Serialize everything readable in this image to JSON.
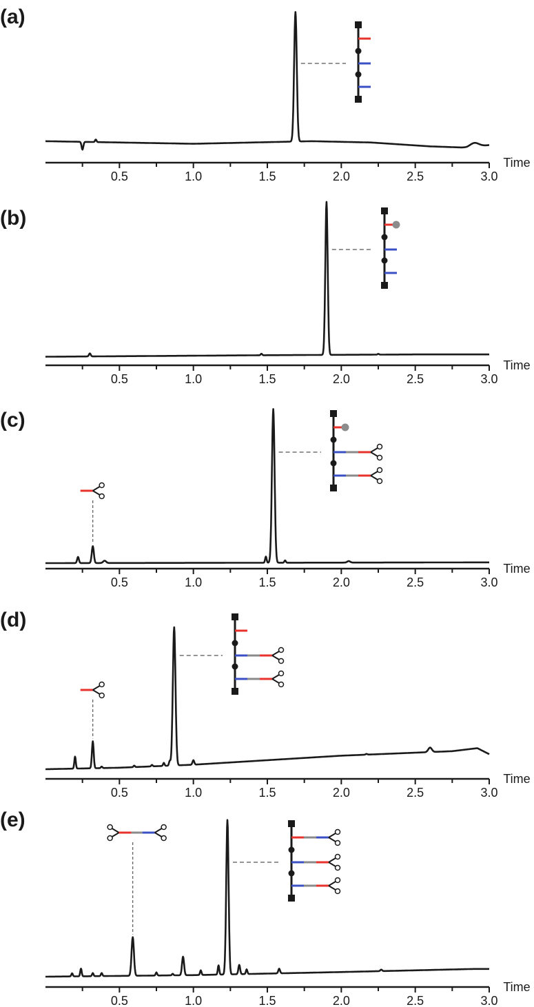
{
  "chart_data": [
    {
      "type": "line",
      "panel": "(a)",
      "xlabel": "Time",
      "xlim": [
        0.0,
        3.0
      ],
      "x_ticks": [
        "0.5",
        "1.0",
        "1.5",
        "2.0",
        "2.5",
        "3.0"
      ],
      "series": [
        {
          "peaks": [
            {
              "x": 0.25,
              "h": -0.06,
              "w": 0.006
            },
            {
              "x": 0.34,
              "h": 0.02,
              "w": 0.005
            },
            {
              "x": 1.69,
              "h": 1.0,
              "w": 0.009
            },
            {
              "x": 2.9,
              "h": 0.03,
              "w": 0.03
            }
          ],
          "baseline": [
            [
              0.0,
              0.07
            ],
            [
              1.0,
              0.05
            ],
            [
              1.8,
              0.07
            ],
            [
              2.2,
              0.06
            ],
            [
              2.6,
              0.03
            ],
            [
              2.85,
              0.02
            ],
            [
              3.0,
              0.04
            ]
          ]
        }
      ],
      "annotations": [
        {
          "x": 1.69,
          "structure": "polymer-red-blue-blue"
        }
      ]
    },
    {
      "type": "line",
      "panel": "(b)",
      "xlabel": "Time",
      "xlim": [
        0.0,
        3.0
      ],
      "x_ticks": [
        "0.5",
        "1.0",
        "1.5",
        "2.0",
        "2.5",
        "3.0"
      ],
      "series": [
        {
          "peaks": [
            {
              "x": 0.3,
              "h": 0.02,
              "w": 0.006
            },
            {
              "x": 1.46,
              "h": 0.01,
              "w": 0.005
            },
            {
              "x": 1.9,
              "h": 1.0,
              "w": 0.008
            },
            {
              "x": 2.25,
              "h": 0.005,
              "w": 0.005
            }
          ],
          "baseline": [
            [
              0.0,
              0.02
            ],
            [
              1.5,
              0.03
            ],
            [
              2.5,
              0.035
            ],
            [
              3.0,
              0.035
            ]
          ]
        }
      ],
      "annotations": [
        {
          "x": 1.9,
          "structure": "polymer-capped-blue-blue"
        }
      ]
    },
    {
      "type": "line",
      "panel": "(c)",
      "xlabel": "Time",
      "xlim": [
        0.0,
        3.0
      ],
      "x_ticks": [
        "0.5",
        "1.0",
        "1.5",
        "2.0",
        "2.5",
        "3.0"
      ],
      "series": [
        {
          "peaks": [
            {
              "x": 0.22,
              "h": 0.04,
              "w": 0.006
            },
            {
              "x": 0.32,
              "h": 0.11,
              "w": 0.007
            },
            {
              "x": 0.4,
              "h": 0.015,
              "w": 0.01
            },
            {
              "x": 1.49,
              "h": 0.04,
              "w": 0.005
            },
            {
              "x": 1.54,
              "h": 1.0,
              "w": 0.009
            },
            {
              "x": 1.62,
              "h": 0.015,
              "w": 0.005
            },
            {
              "x": 2.05,
              "h": 0.01,
              "w": 0.01
            }
          ],
          "baseline": [
            [
              0.0,
              0.0
            ],
            [
              3.0,
              0.005
            ]
          ]
        }
      ],
      "annotations": [
        {
          "x": 0.32,
          "structure": "linker-red"
        },
        {
          "x": 1.54,
          "structure": "polymer-capped-linked"
        }
      ]
    },
    {
      "type": "line",
      "panel": "(d)",
      "xlabel": "Time",
      "xlim": [
        0.0,
        3.0
      ],
      "x_ticks": [
        "0.5",
        "1.0",
        "1.5",
        "2.0",
        "2.5",
        "3.0"
      ],
      "series": [
        {
          "peaks": [
            {
              "x": 0.2,
              "h": 0.08,
              "w": 0.005
            },
            {
              "x": 0.32,
              "h": 0.18,
              "w": 0.006
            },
            {
              "x": 0.38,
              "h": 0.01,
              "w": 0.005
            },
            {
              "x": 0.6,
              "h": 0.01,
              "w": 0.005
            },
            {
              "x": 0.72,
              "h": 0.01,
              "w": 0.005
            },
            {
              "x": 0.8,
              "h": 0.02,
              "w": 0.005
            },
            {
              "x": 0.84,
              "h": 0.03,
              "w": 0.005
            },
            {
              "x": 0.87,
              "h": 0.92,
              "w": 0.009
            },
            {
              "x": 1.0,
              "h": 0.03,
              "w": 0.006
            },
            {
              "x": 2.17,
              "h": 0.005,
              "w": 0.006
            },
            {
              "x": 2.6,
              "h": 0.03,
              "w": 0.012
            }
          ],
          "baseline": [
            [
              0.0,
              0.0
            ],
            [
              0.5,
              0.01
            ],
            [
              1.0,
              0.03
            ],
            [
              1.5,
              0.06
            ],
            [
              2.0,
              0.09
            ],
            [
              2.5,
              0.11
            ],
            [
              2.75,
              0.12
            ],
            [
              2.92,
              0.14
            ],
            [
              3.0,
              0.1
            ]
          ]
        }
      ],
      "annotations": [
        {
          "x": 0.32,
          "structure": "linker-red"
        },
        {
          "x": 0.87,
          "structure": "polymer-red-linked"
        }
      ]
    },
    {
      "type": "line",
      "panel": "(e)",
      "xlabel": "Time",
      "xlim": [
        0.0,
        3.0
      ],
      "x_ticks": [
        "0.5",
        "1.0",
        "1.5",
        "2.0",
        "2.5",
        "3.0"
      ],
      "series": [
        {
          "peaks": [
            {
              "x": 0.18,
              "h": 0.02,
              "w": 0.005
            },
            {
              "x": 0.24,
              "h": 0.05,
              "w": 0.005
            },
            {
              "x": 0.32,
              "h": 0.02,
              "w": 0.005
            },
            {
              "x": 0.38,
              "h": 0.02,
              "w": 0.005
            },
            {
              "x": 0.59,
              "h": 0.25,
              "w": 0.008
            },
            {
              "x": 0.75,
              "h": 0.02,
              "w": 0.005
            },
            {
              "x": 0.86,
              "h": 0.01,
              "w": 0.005
            },
            {
              "x": 0.93,
              "h": 0.12,
              "w": 0.007
            },
            {
              "x": 1.05,
              "h": 0.03,
              "w": 0.005
            },
            {
              "x": 1.17,
              "h": 0.06,
              "w": 0.005
            },
            {
              "x": 1.23,
              "h": 1.0,
              "w": 0.008
            },
            {
              "x": 1.31,
              "h": 0.06,
              "w": 0.006
            },
            {
              "x": 1.36,
              "h": 0.03,
              "w": 0.005
            },
            {
              "x": 1.58,
              "h": 0.03,
              "w": 0.006
            },
            {
              "x": 2.27,
              "h": 0.01,
              "w": 0.006
            }
          ],
          "baseline": [
            [
              0.0,
              0.0
            ],
            [
              1.0,
              0.01
            ],
            [
              2.0,
              0.03
            ],
            [
              2.9,
              0.05
            ],
            [
              3.0,
              0.05
            ]
          ]
        }
      ],
      "annotations": [
        {
          "x": 0.59,
          "structure": "linker-bis"
        },
        {
          "x": 1.23,
          "structure": "polymer-all-linked"
        }
      ]
    }
  ],
  "colors": {
    "trace": "#1a1a1a",
    "red": "#e8322b",
    "blue": "#3b4fc4",
    "grey": "#8a8a8a",
    "cap": "#8c8c8c",
    "dashed": "#555555"
  },
  "icons": [
    "polymer-backbone-icon",
    "scissors-icon",
    "cap-dot-icon"
  ]
}
